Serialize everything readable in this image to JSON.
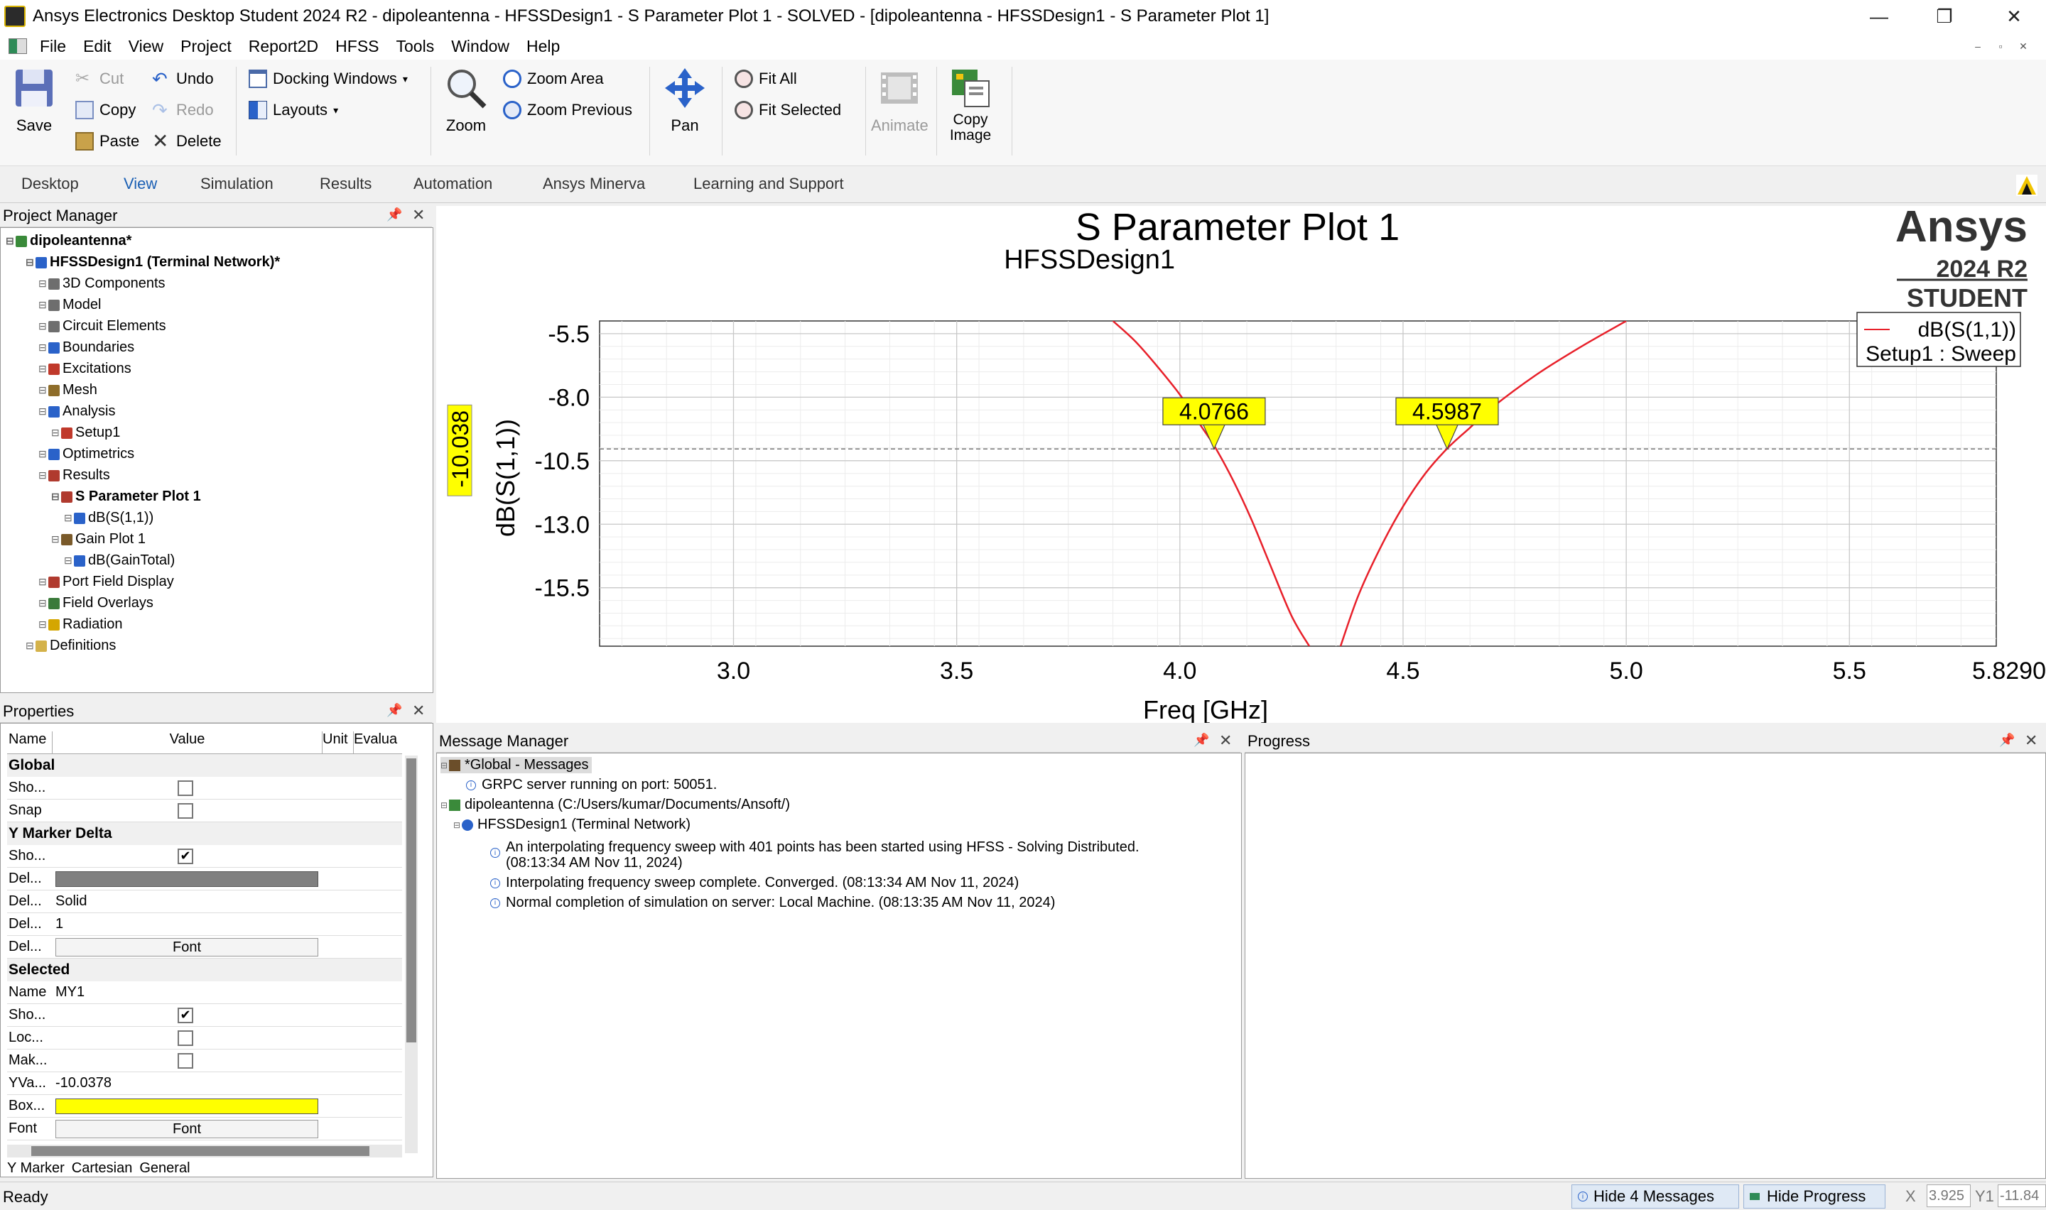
{
  "window": {
    "title": "Ansys Electronics Desktop Student 2024 R2 - dipoleantenna - HFSSDesign1 - S Parameter Plot 1 - SOLVED - [dipoleantenna - HFSSDesign1 - S Parameter Plot 1]",
    "minimize": "—",
    "restore": "❐",
    "close": "✕"
  },
  "menu": [
    "File",
    "Edit",
    "View",
    "Project",
    "Report2D",
    "HFSS",
    "Tools",
    "Window",
    "Help"
  ],
  "ribbon": {
    "save": "Save",
    "cut": "Cut",
    "copy": "Copy",
    "paste": "Paste",
    "undo": "Undo",
    "redo": "Redo",
    "delete": "Delete",
    "docking_windows": "Docking Windows",
    "layouts": "Layouts",
    "zoom": "Zoom",
    "zoom_area": "Zoom Area",
    "zoom_previous": "Zoom Previous",
    "pan": "Pan",
    "fit_all": "Fit All",
    "fit_selected": "Fit Selected",
    "animate": "Animate",
    "copy_image_1": "Copy",
    "copy_image_2": "Image"
  },
  "tabs": [
    "Desktop",
    "View",
    "Simulation",
    "Results",
    "Automation",
    "Ansys Minerva",
    "Learning and Support"
  ],
  "project_manager": {
    "title": "Project Manager",
    "tree": [
      {
        "label": "dipoleantenna*",
        "level": 0,
        "bold": true
      },
      {
        "label": "HFSSDesign1 (Terminal Network)*",
        "level": 1,
        "bold": true
      },
      {
        "label": "3D Components",
        "level": 2
      },
      {
        "label": "Model",
        "level": 2
      },
      {
        "label": "Circuit Elements",
        "level": 2
      },
      {
        "label": "Boundaries",
        "level": 2
      },
      {
        "label": "Excitations",
        "level": 2
      },
      {
        "label": "Mesh",
        "level": 2
      },
      {
        "label": "Analysis",
        "level": 2
      },
      {
        "label": "Setup1",
        "level": 3
      },
      {
        "label": "Optimetrics",
        "level": 2
      },
      {
        "label": "Results",
        "level": 2
      },
      {
        "label": "S Parameter Plot 1",
        "level": 3,
        "bold": true
      },
      {
        "label": "dB(S(1,1))",
        "level": 4
      },
      {
        "label": "Gain Plot 1",
        "level": 3
      },
      {
        "label": "dB(GainTotal)",
        "level": 4
      },
      {
        "label": "Port Field Display",
        "level": 2
      },
      {
        "label": "Field Overlays",
        "level": 2
      },
      {
        "label": "Radiation",
        "level": 2
      },
      {
        "label": "Definitions",
        "level": 1
      }
    ]
  },
  "properties": {
    "title": "Properties",
    "columns": [
      "Name",
      "Value",
      "Unit",
      "Evalua"
    ],
    "sections": {
      "global": "Global",
      "y_marker_delta": "Y Marker Delta",
      "selected": "Selected"
    },
    "rows": {
      "show1": "Sho...",
      "snap": "Snap",
      "show2": "Sho...",
      "del1": "Del...",
      "del2": "Del...",
      "del2_val": "Solid",
      "del3": "Del...",
      "del3_val": "1",
      "del4": "Del...",
      "font_btn": "Font",
      "name": "Name",
      "name_val": "MY1",
      "show3": "Sho...",
      "loc": "Loc...",
      "mak": "Mak...",
      "yva": "YVa...",
      "yva_val": "-10.0378",
      "box": "Box...",
      "font": "Font",
      "font_btn2": "Font"
    },
    "bottom_tabs": [
      "Y Marker",
      "Cartesian",
      "General"
    ]
  },
  "plot": {
    "title": "S Parameter Plot 1",
    "design": "HFSSDesign1",
    "brand": "Ansys",
    "version": "2024 R2",
    "edition": "STUDENT",
    "legend_line1": "dB(S(1,1))",
    "legend_line2": "Setup1 : Sweep",
    "marker_y_label": "-10.038",
    "marker1": "4.0766",
    "marker2": "4.5987",
    "x_end_label": "5.8290"
  },
  "chart_data": {
    "type": "line",
    "title": "S Parameter Plot 1",
    "xlabel": "Freq [GHz]",
    "ylabel": "dB(S(1,1))",
    "xlim": [
      2.7,
      5.829
    ],
    "ylim": [
      -17.8,
      -5.0
    ],
    "x_ticks": [
      "3.0",
      "3.5",
      "4.0",
      "4.5",
      "5.0",
      "5.5"
    ],
    "y_ticks": [
      "-5.5",
      "-8.0",
      "-10.5",
      "-13.0",
      "-15.5"
    ],
    "grid": true,
    "legend": "top-right",
    "series": [
      {
        "name": "dB(S(1,1))",
        "color": "#e8202a",
        "x": [
          3.85,
          3.9,
          3.95,
          4.0,
          4.05,
          4.08,
          4.12,
          4.16,
          4.2,
          4.25,
          4.29,
          4.36,
          4.4,
          4.45,
          4.5,
          4.55,
          4.6,
          4.65,
          4.7,
          4.8,
          4.9,
          5.0
        ],
        "y": [
          -5.0,
          -5.8,
          -6.8,
          -7.9,
          -9.2,
          -10.0,
          -11.3,
          -12.8,
          -14.5,
          -16.6,
          -17.8,
          -17.8,
          -15.8,
          -13.9,
          -12.3,
          -11.0,
          -10.0,
          -9.2,
          -8.4,
          -7.1,
          -6.0,
          -5.0
        ]
      }
    ],
    "y_marker": -10.038,
    "markers": [
      {
        "x": 4.0766,
        "label": "4.0766"
      },
      {
        "x": 4.5987,
        "label": "4.5987"
      }
    ]
  },
  "message_manager": {
    "title": "Message Manager",
    "global": "*Global - Messages",
    "grpc": "GRPC server running on port: 50051.",
    "project": "dipoleantenna (C:/Users/kumar/Documents/Ansoft/)",
    "design": "HFSSDesign1 (Terminal Network)",
    "msg1a": "An interpolating frequency sweep with 401 points has been started using HFSS - Solving Distributed.",
    "msg1b": "(08:13:34 AM  Nov 11, 2024)",
    "msg2": "Interpolating frequency sweep complete. Converged. (08:13:34 AM  Nov 11, 2024)",
    "msg3": "Normal completion of simulation on server: Local Machine. (08:13:35 AM  Nov 11, 2024)"
  },
  "progress": {
    "title": "Progress"
  },
  "status": {
    "ready": "Ready",
    "hide_messages": "Hide 4 Messages",
    "hide_progress": "Hide Progress",
    "x_label": "X",
    "x_value": "3.925",
    "y1_label": "Y1",
    "y1_value": "-11.84"
  }
}
